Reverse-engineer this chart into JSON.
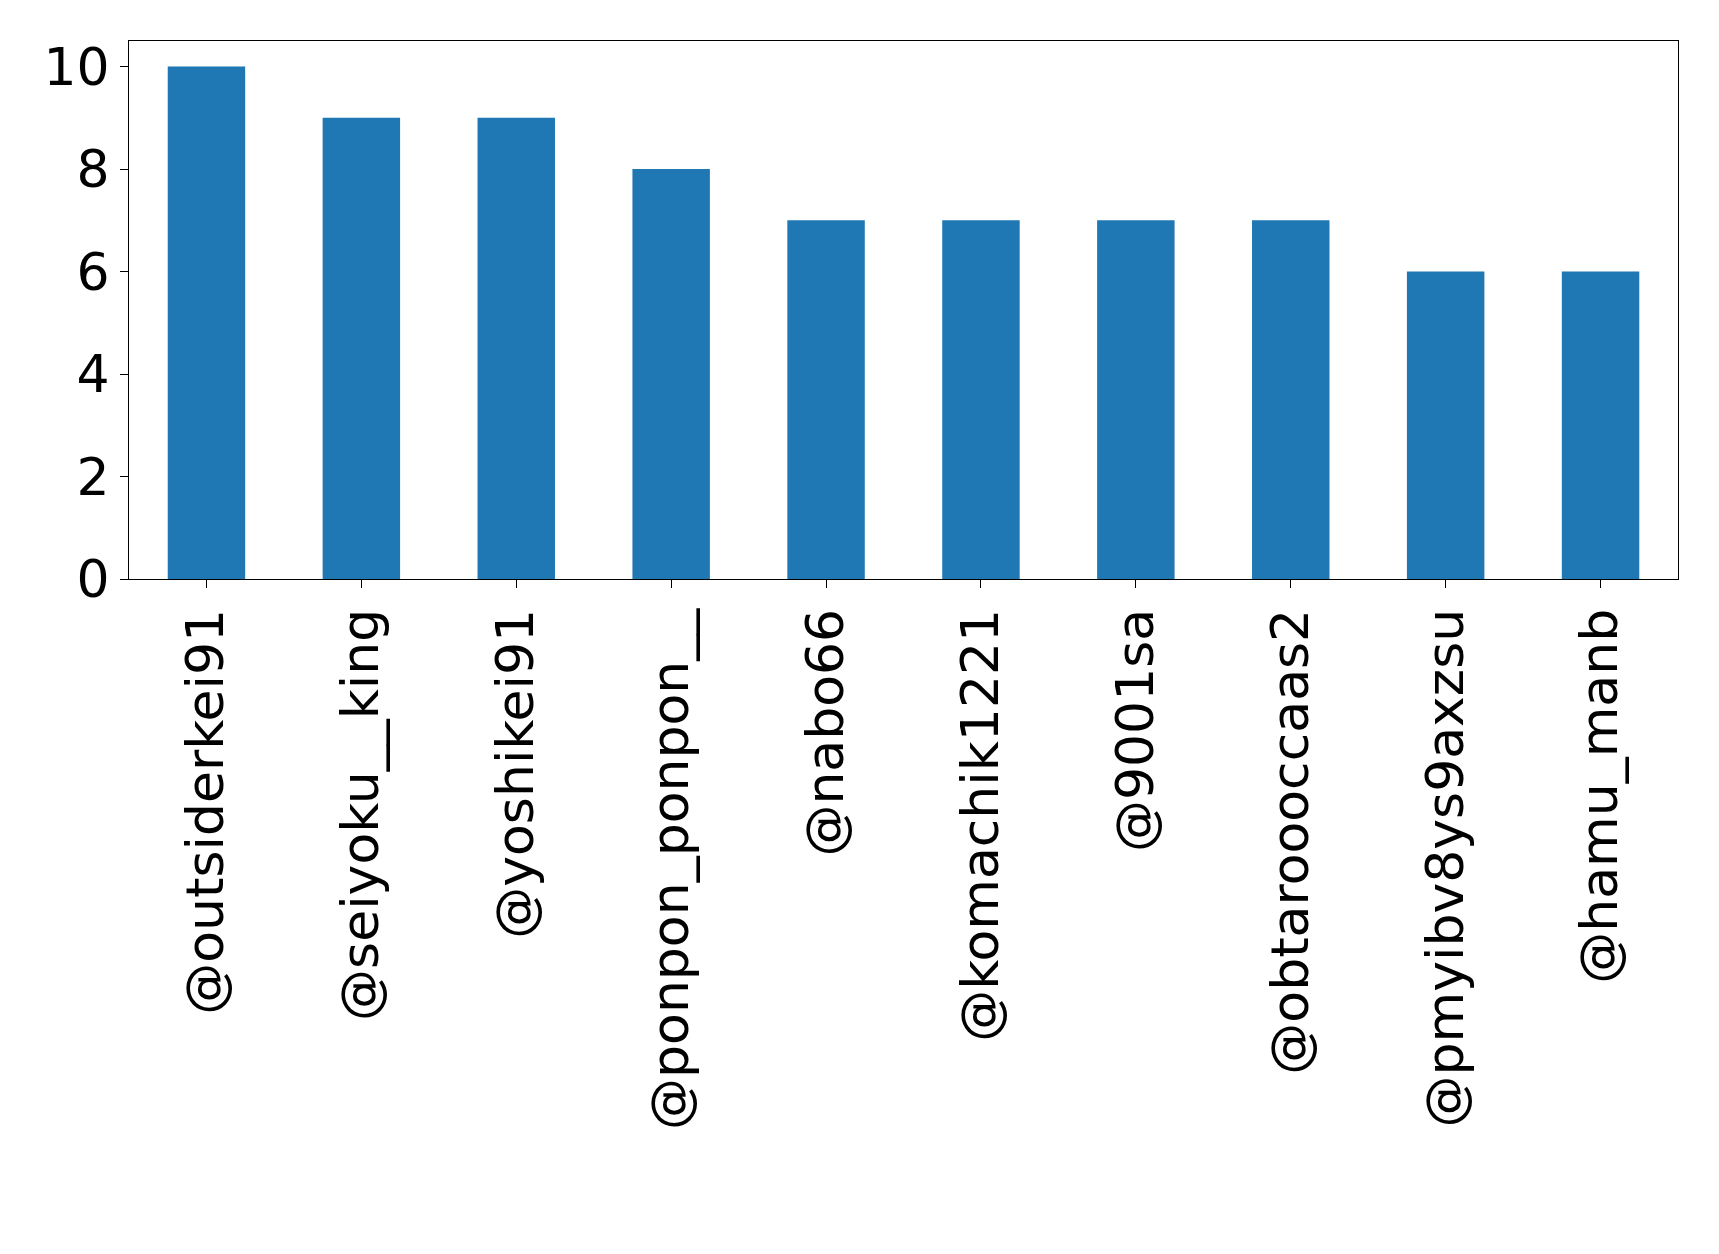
{
  "chart_data": {
    "type": "bar",
    "categories": [
      "@outsiderkei91",
      "@seiyoku__king",
      "@yoshikei91",
      "@ponpon_ponpon__",
      "@nabo66",
      "@komachik1221",
      "@9001sa",
      "@obtaroooccaas2",
      "@pmyibv8ys9axzsu",
      "@hamu_manb"
    ],
    "values": [
      10,
      9,
      9,
      8,
      7,
      7,
      7,
      7,
      6,
      6
    ],
    "color": "#1f77b4",
    "ylim": [
      0,
      10.5
    ],
    "yticks": [
      0,
      2,
      4,
      6,
      8,
      10
    ]
  }
}
